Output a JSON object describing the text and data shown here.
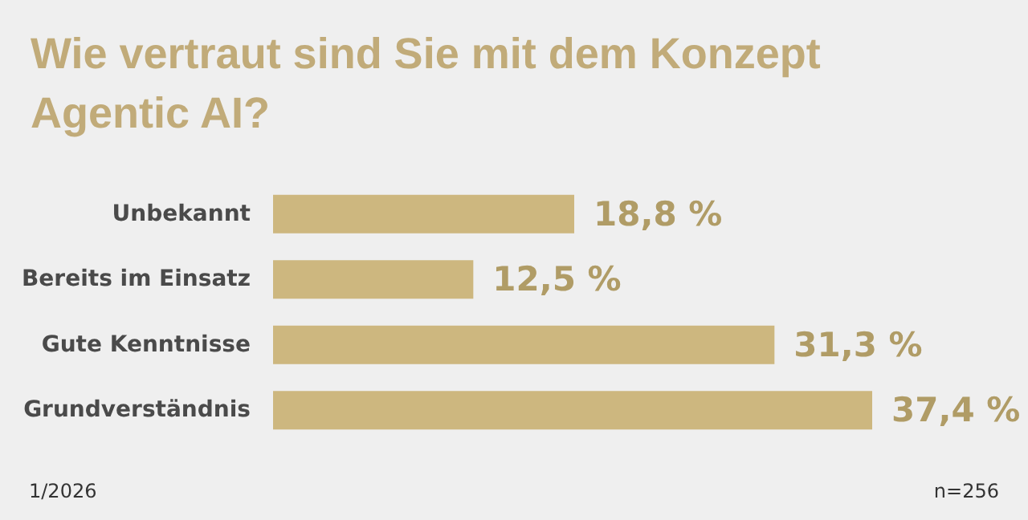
{
  "chart_data": {
    "type": "bar",
    "orientation": "horizontal",
    "title": "Wie vertraut sind Sie mit dem Konzept\nAgentic AI?",
    "categories": [
      "Unbekannt",
      "Bereits im Einsatz",
      "Gute Kenntnisse",
      "Grundverständnis"
    ],
    "values": [
      18.8,
      12.5,
      31.3,
      37.4
    ],
    "value_labels": [
      "18,8 %",
      "12,5 %",
      "31,3 %",
      "37,4 %"
    ],
    "color": "#cdb77f",
    "tick_labels": "y",
    "annotations": [
      "1/2026",
      "n=256"
    ]
  }
}
